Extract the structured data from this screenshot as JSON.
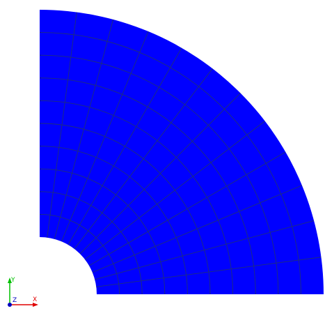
{
  "viewport": {
    "background_color": "#ffffff",
    "mesh": {
      "fill_color": "#0000ff",
      "line_color": "#1f2f7a",
      "radial_divisions": 10,
      "angular_divisions": 12
    }
  },
  "axes_triad": {
    "y_label": "Y",
    "z_label": "Z",
    "x_label": "X",
    "y_color": "#00c000",
    "z_color": "#0000c0",
    "x_color": "#e00000"
  }
}
